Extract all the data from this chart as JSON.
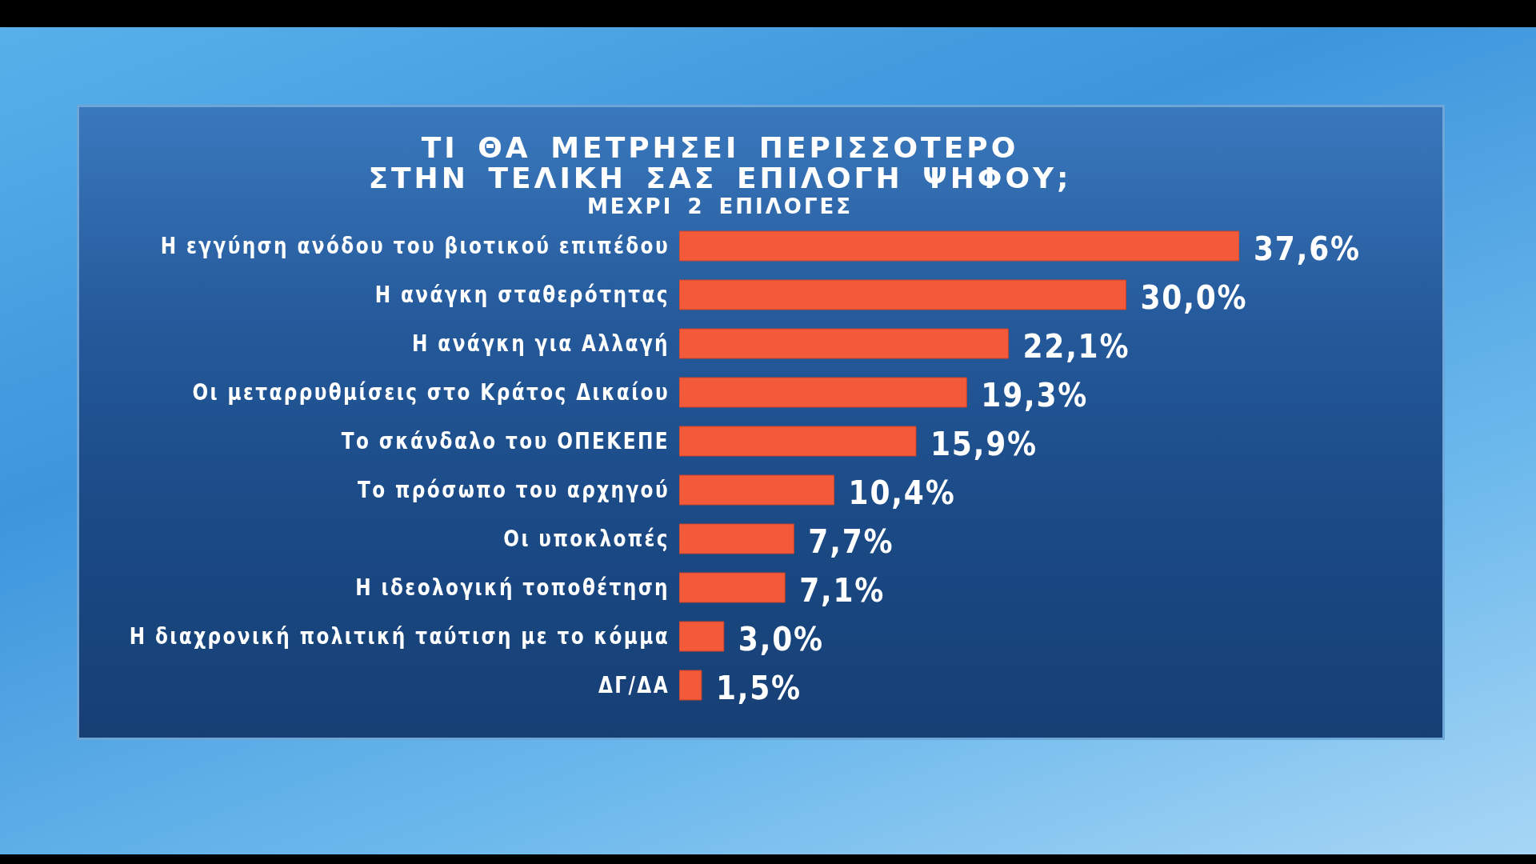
{
  "chart_data": {
    "type": "bar",
    "orientation": "horizontal",
    "title": "ΤΙ ΘΑ ΜΕΤΡΗΣΕΙ ΠΕΡΙΣΣΟΤΕΡΟ ΣΤΗΝ ΤΕΛΙΚΗ ΣΑΣ ΕΠΙΛΟΓΗ ΨΗΦΟΥ;",
    "subtitle": "ΜΕΧΡΙ 2 ΕΠΙΛΟΓΕΣ",
    "categories": [
      "Η εγγύηση ανόδου του βιοτικού επιπέδου",
      "Η ανάγκη σταθερότητας",
      "Η ανάγκη για Αλλαγή",
      "Οι μεταρρυθμίσεις στο Κράτος Δικαίου",
      "Το σκάνδαλο του ΟΠΕΚΕΠΕ",
      "Το πρόσωπο του αρχηγού",
      "Οι υποκλοπές",
      "Η ιδεολογική τοποθέτηση",
      "Η διαχρονική πολιτική ταύτιση με το κόμμα",
      "ΔΓ/ΔΑ"
    ],
    "values": [
      37.6,
      30.0,
      22.1,
      19.3,
      15.9,
      10.4,
      7.7,
      7.1,
      3.0,
      1.5
    ],
    "value_labels": [
      "37,6%",
      "30,0%",
      "22,1%",
      "19,3%",
      "15,9%",
      "10,4%",
      "7,7%",
      "7,1%",
      "3,0%",
      "1,5%"
    ],
    "color": "#f25a3a",
    "tick_labels": "y"
  }
}
